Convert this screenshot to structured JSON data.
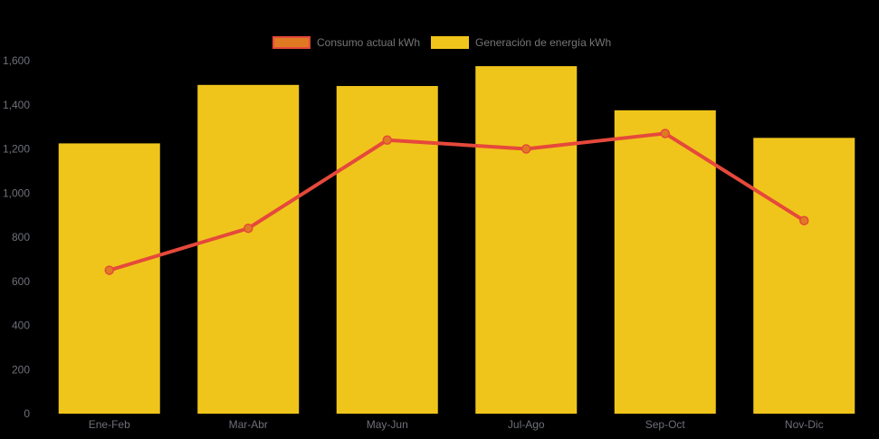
{
  "chart_data": {
    "type": "bar",
    "title": "",
    "xlabel": "",
    "ylabel": "",
    "categories": [
      "Ene-Feb",
      "Mar-Abr",
      "May-Jun",
      "Jul-Ago",
      "Sep-Oct",
      "Nov-Dic"
    ],
    "series": [
      {
        "name": "Consumo actual kWh",
        "type": "line",
        "values": [
          650,
          840,
          1240,
          1200,
          1270,
          875
        ],
        "color": "#e5493b",
        "marker_color": "#e07a22"
      },
      {
        "name": "Generación de energía kWh",
        "type": "bar",
        "values": [
          1225,
          1490,
          1485,
          1575,
          1375,
          1250
        ],
        "color": "#f0c51b"
      }
    ],
    "ylim": [
      0,
      1600
    ],
    "ytick_step": 200,
    "ytick_labels": [
      "0",
      "200",
      "400",
      "600",
      "800",
      "1,000",
      "1,200",
      "1,400",
      "1,600"
    ],
    "grid": false,
    "legend_position": "top-center",
    "background_color": "#000000",
    "axis_label_color": "#6e7079",
    "legend_text_color": "#757575"
  },
  "legend": {
    "items": [
      {
        "label": "Consumo actual kWh",
        "swatch_fill": "#e07a22",
        "swatch_border": "#e5493b"
      },
      {
        "label": "Generación de energía kWh",
        "swatch_fill": "#f0c51b",
        "swatch_border": "#f0c51b"
      }
    ]
  }
}
